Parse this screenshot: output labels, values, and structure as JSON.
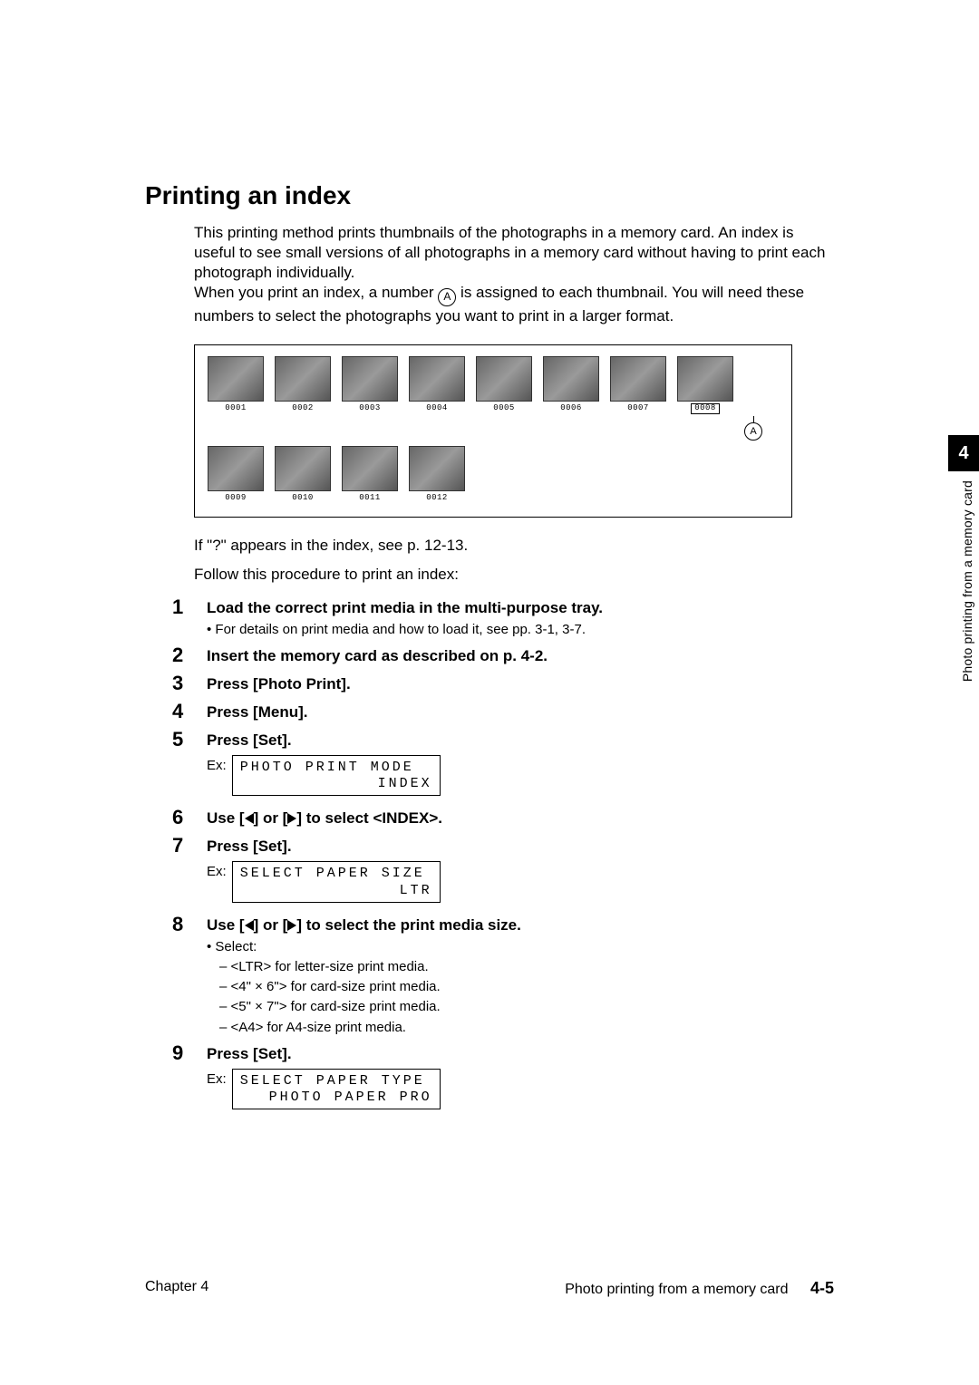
{
  "title": "Printing an index",
  "intro_p1": "This printing method prints thumbnails of the photographs in a memory card. An index is useful to see small versions of all photographs in a memory card without having to print each photograph individually.",
  "intro_p2a": "When you print an index, a number ",
  "intro_p2b": " is assigned to each thumbnail. You will need these numbers to select the photographs you want to print in a larger format.",
  "marker_letter": "A",
  "thumbs_row1": [
    "0001",
    "0002",
    "0003",
    "0004",
    "0005",
    "0006",
    "0007",
    "0008"
  ],
  "thumbs_row2": [
    "0009",
    "0010",
    "0011",
    "0012"
  ],
  "after_fig_1": "If \"?\" appears in the index, see p. 12-13.",
  "after_fig_2": "Follow this procedure to print an index:",
  "steps": {
    "s1_bold": "Load the correct print media in the multi-purpose tray.",
    "s1_sub": "For details on print media and how to load it, see pp. 3-1, 3-7.",
    "s2_bold": "Insert the memory card as described on p. 4-2.",
    "s3_bold": "Press [Photo Print].",
    "s4_bold": "Press [Menu].",
    "s5_bold": "Press [Set].",
    "s6_pre": "Use [",
    "s6_mid": "] or [",
    "s6_post": "] to select <INDEX>.",
    "s7_bold": "Press [Set].",
    "s8_pre": "Use [",
    "s8_mid": "] or [",
    "s8_post": "] to select the print media size.",
    "s8_sub_head": "Select:",
    "s8_opt1": "<LTR> for letter-size print media.",
    "s8_opt2": "<4\" × 6\"> for card-size print media.",
    "s8_opt3": "<5\" × 7\"> for card-size print media.",
    "s8_opt4": "<A4> for A4-size print media.",
    "s9_bold": "Press [Set]."
  },
  "ex_label": "Ex:",
  "lcd1_l1": "PHOTO PRINT MODE",
  "lcd1_l2": "INDEX",
  "lcd2_l1": "SELECT PAPER SIZE",
  "lcd2_l2": "LTR",
  "lcd3_l1": "SELECT PAPER TYPE",
  "lcd3_l2": "PHOTO PAPER PRO",
  "side_tab_num": "4",
  "side_tab_text": "Photo printing from a memory card",
  "footer_left": "Chapter 4",
  "footer_center": "Photo printing from a memory card",
  "footer_page": "4-5"
}
